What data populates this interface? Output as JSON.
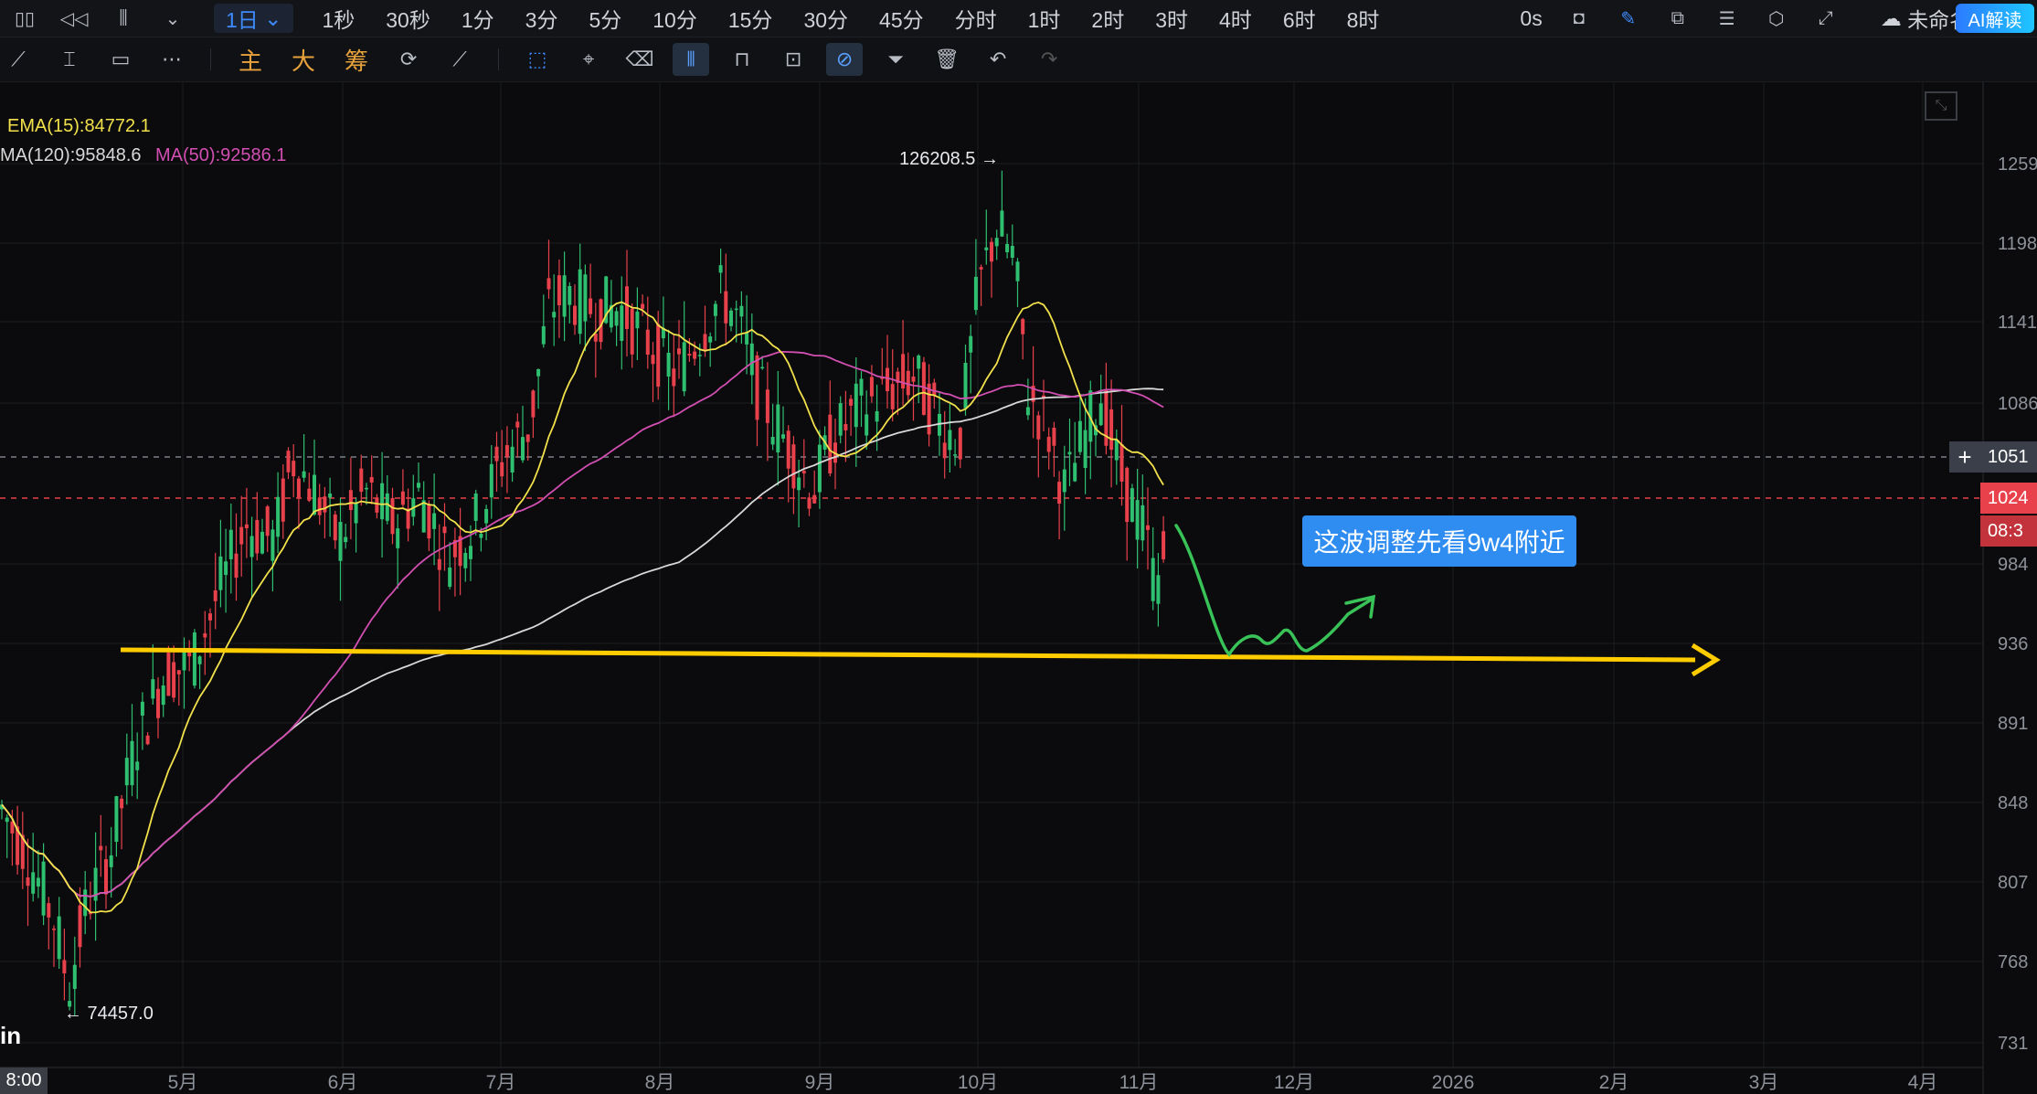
{
  "topbar": {
    "icons": [
      "layout-icon",
      "rewind-icon",
      "candle-type-icon",
      "chevron-down-icon"
    ],
    "interval_active": "1日",
    "intervals": [
      "1秒",
      "30秒",
      "1分",
      "3分",
      "5分",
      "10分",
      "15分",
      "30分",
      "45分",
      "分时",
      "1时",
      "2时",
      "3时",
      "4时",
      "6时",
      "8时"
    ],
    "latency": "0s",
    "workspace_name": "未命名",
    "ai_button": "AI解读"
  },
  "toolbar": {
    "indicator_buttons": [
      "主",
      "大",
      "筹"
    ]
  },
  "legend": {
    "ema15": "EMA(15):84772.1",
    "ma120": "MA(120):95848.6",
    "ma50": "MA(50):92586.1"
  },
  "annotation": {
    "callout_text": "这波调整先看9w4附近"
  },
  "extremes": {
    "high": "126208.5 →",
    "low": "← 74457.0"
  },
  "brand_text": "in",
  "time_label": "8:00",
  "price_tags": {
    "crosshair": "1051",
    "current": "1024",
    "countdown": "08:3"
  },
  "chart_data": {
    "type": "candlestick",
    "series": [
      {
        "name": "EMA(15)",
        "color": "#f2e14b"
      },
      {
        "name": "MA(50)",
        "color": "#d24fb2"
      },
      {
        "name": "MA(120)",
        "color": "#d8d8d8"
      }
    ],
    "y_ticks": [
      "1259",
      "1198",
      "1141",
      "1086",
      "1051",
      "1024",
      "984",
      "936",
      "891",
      "848",
      "807",
      "768",
      "731"
    ],
    "x_ticks": [
      "5月",
      "6月",
      "7月",
      "8月",
      "9月",
      "10月",
      "11月",
      "12月",
      "2026",
      "2月",
      "3月",
      "4月"
    ],
    "annotations": {
      "high": 126208.5,
      "low": 74457.0,
      "support_level": 94000
    },
    "colors": {
      "up": "#2fbf71",
      "down": "#e8414b",
      "support": "#ffcc00",
      "projection": "#39c257",
      "accent": "#2f8cf0"
    }
  }
}
